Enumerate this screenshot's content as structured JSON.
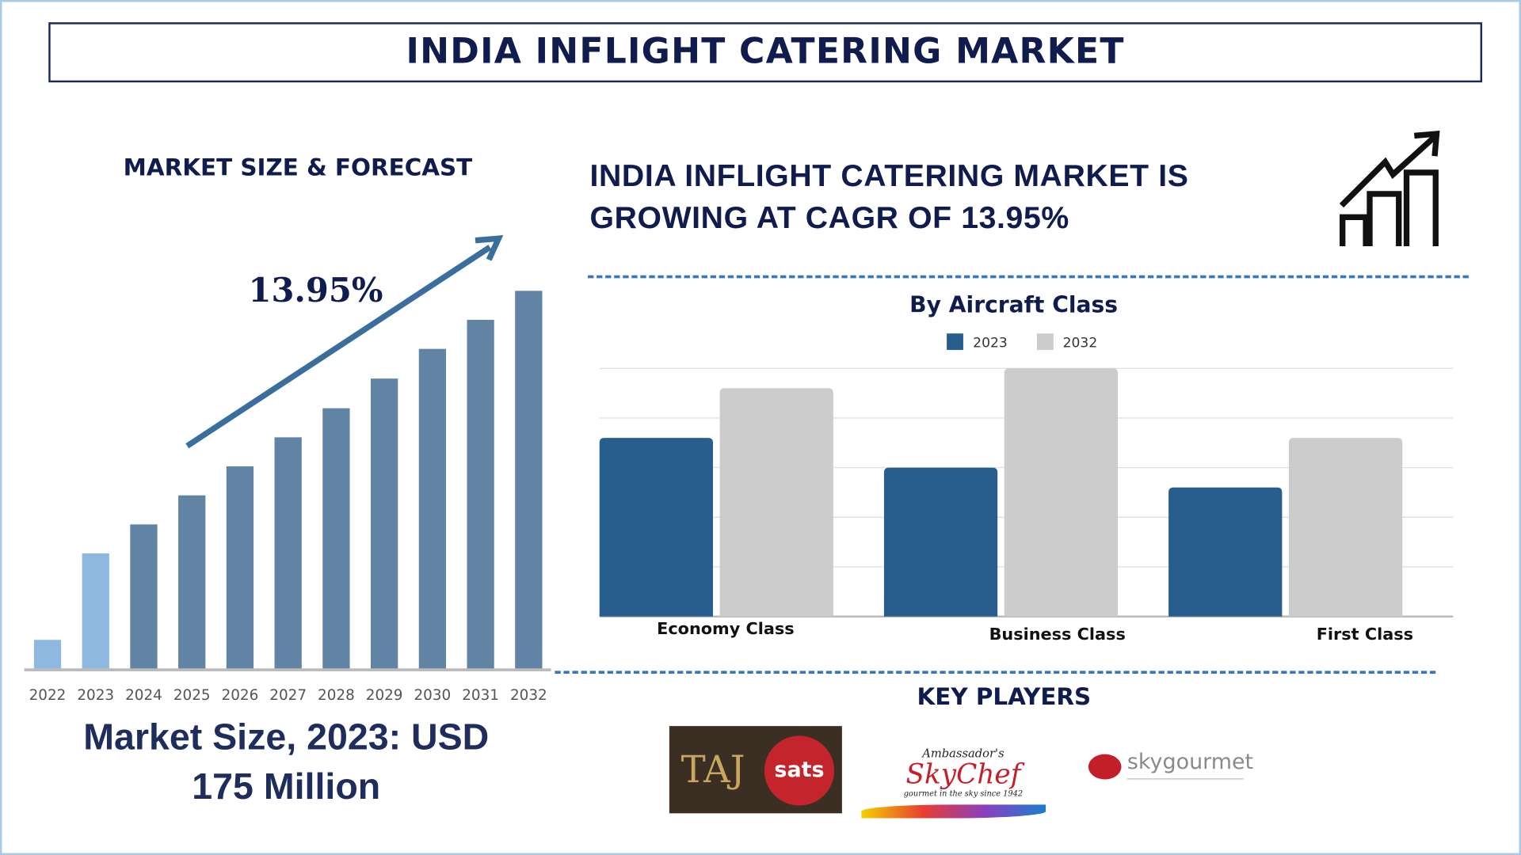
{
  "header": {
    "title": "INDIA INFLIGHT CATERING MARKET"
  },
  "left": {
    "heading": "MARKET SIZE & FORECAST",
    "cagr_label": "13.95%",
    "market_size_line1": "Market Size, 2023: USD",
    "market_size_line2": "175 Million"
  },
  "right": {
    "headline_line1": "INDIA INFLIGHT CATERING MARKET IS",
    "headline_line2": "GROWING AT CAGR OF 13.95%",
    "icon": "growth-chart-icon"
  },
  "key_players": {
    "heading": "KEY PLAYERS",
    "logos": [
      {
        "name": "TAJ sats",
        "taj": "TAJ",
        "sats": "sats"
      },
      {
        "name": "Ambassador's Sky Chef",
        "script": "Ambassador's",
        "main": "SkyChef",
        "tag": "gourmet in the sky since 1942"
      },
      {
        "name": "skygourmet",
        "text": "skygourmet"
      }
    ]
  },
  "chart_data": [
    {
      "type": "bar",
      "title": "",
      "categories": [
        "2022",
        "2023",
        "2024",
        "2025",
        "2026",
        "2027",
        "2028",
        "2029",
        "2030",
        "2031",
        "2032"
      ],
      "values": [
        44,
        175,
        219,
        263,
        307,
        351,
        395,
        440,
        485,
        529,
        573
      ],
      "unit": "USD Million (approx., scaled from 2023 = 175)",
      "colors": {
        "historic": "#8fb8e0",
        "forecast": "#6284a4",
        "arrow": "#3a6e9c"
      },
      "historic_years": [
        "2022",
        "2023"
      ],
      "grid": false
    },
    {
      "type": "bar",
      "title": "By Aircraft Class",
      "categories": [
        "Economy Class",
        "Business Class",
        "First Class"
      ],
      "series": [
        {
          "name": "2023",
          "values": [
            3.6,
            3.0,
            2.6
          ],
          "color": "#285e8e"
        },
        {
          "name": "2032",
          "values": [
            4.6,
            5.0,
            3.6
          ],
          "color": "#cccccc"
        }
      ],
      "ylim": [
        0,
        5
      ],
      "grid": true,
      "legend": "top"
    }
  ]
}
